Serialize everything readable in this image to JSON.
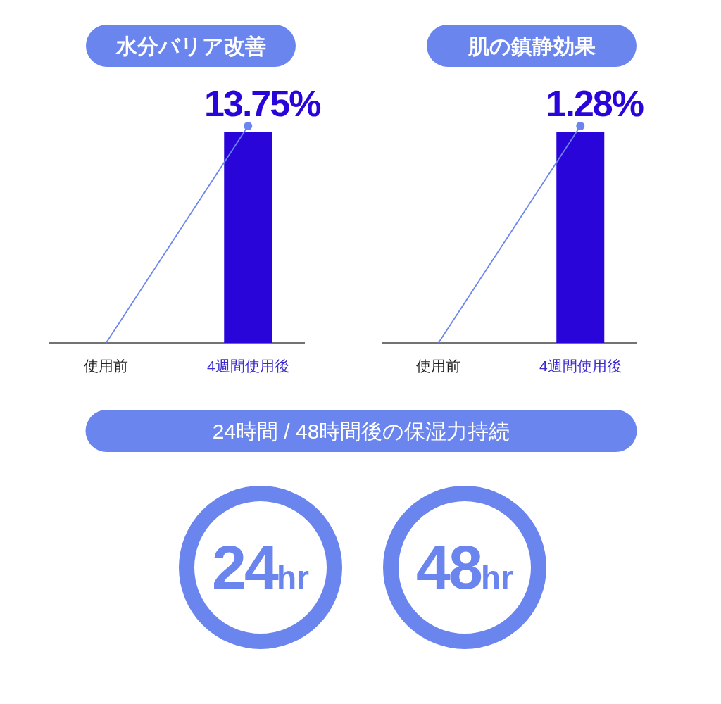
{
  "chart_data": [
    {
      "type": "bar",
      "title": "水分バリア改善",
      "categories": [
        "使用前",
        "4週間使用後"
      ],
      "color": "#2a05d9",
      "values": [
        0,
        13.75
      ],
      "value_labels": [
        null,
        "13.75%"
      ]
    },
    {
      "type": "bar",
      "title": "肌の鎮静効果",
      "categories": [
        "使用前",
        "4週間使用後"
      ],
      "color": "#2a05d9",
      "values": [
        0,
        1.28
      ],
      "value_labels": [
        null,
        "1.28%"
      ]
    },
    {
      "type": "other",
      "title": "24時間 / 48時間後の保湿力持続",
      "color": "#6b85ee",
      "categories": [
        "24hr",
        "48hr"
      ]
    }
  ]
}
